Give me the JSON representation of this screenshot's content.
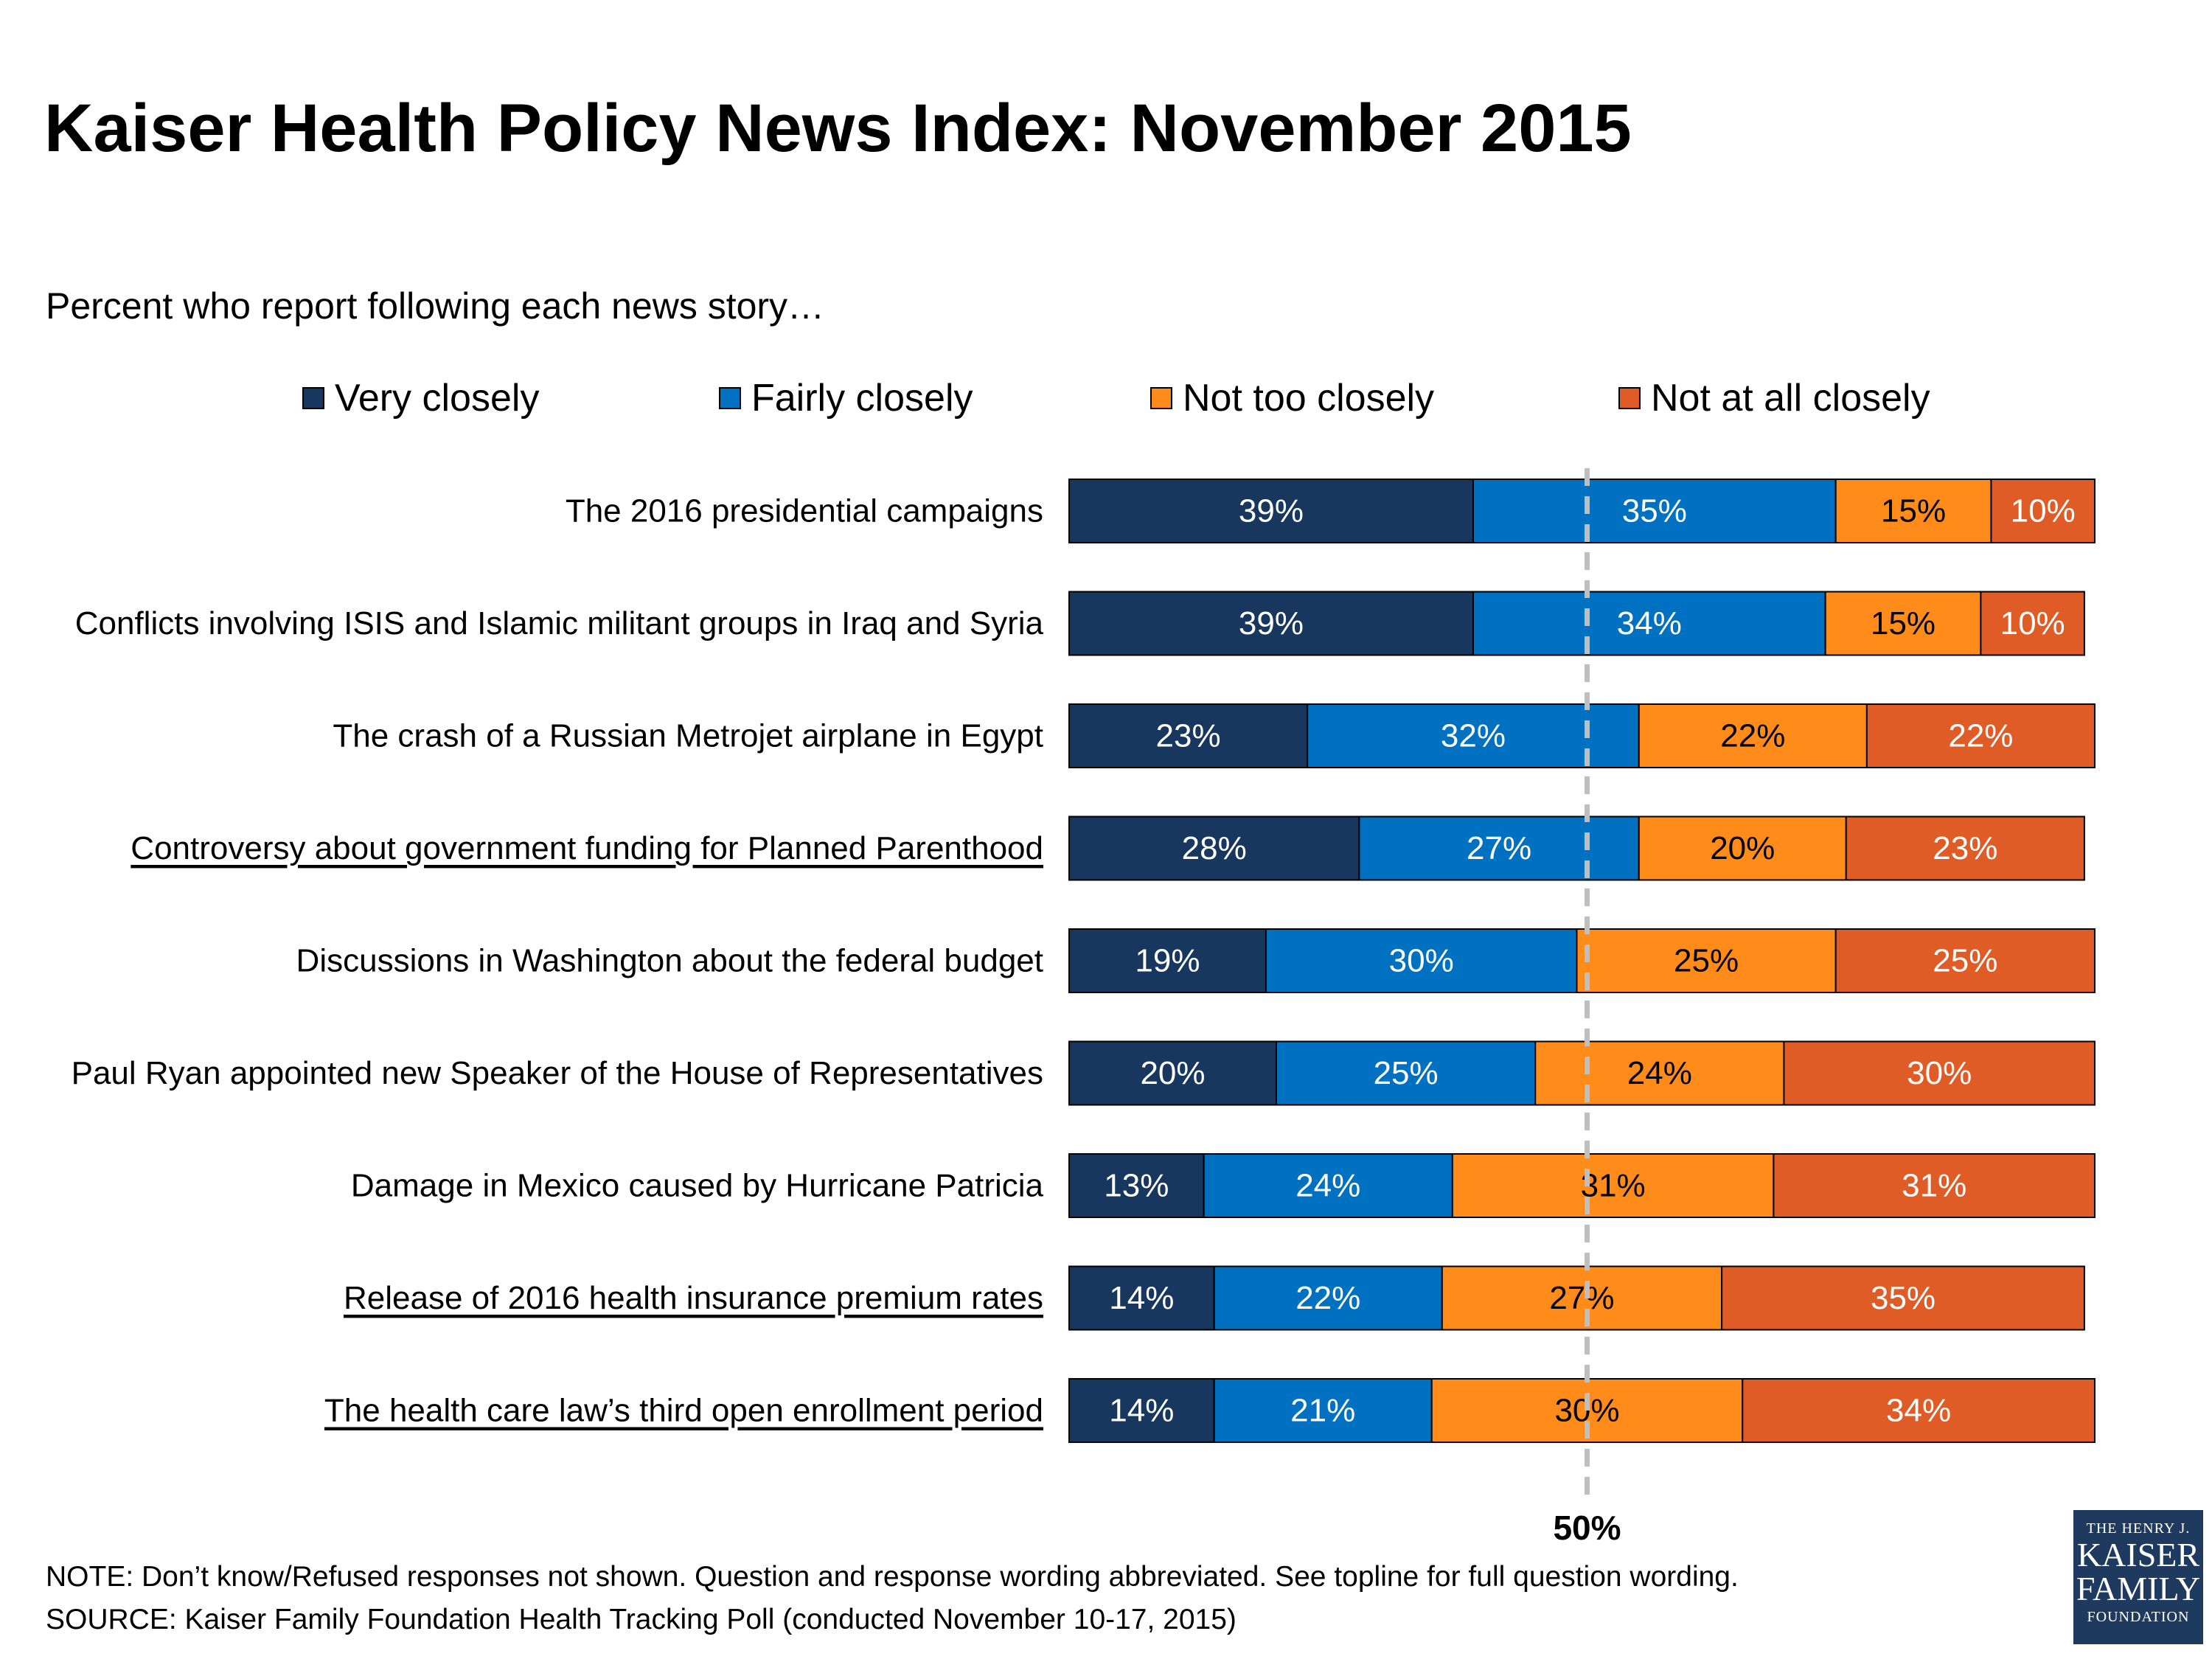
{
  "title": "Kaiser Health Policy News Index: November 2015",
  "subtitle": "Percent who report following each news story…",
  "footnotes": {
    "note": "NOTE: Don’t know/Refused responses not shown. Question and response wording abbreviated.  See topline for full question wording.",
    "source": "SOURCE: Kaiser Family Foundation Health Tracking Poll (conducted November 10-17, 2015)"
  },
  "logo": {
    "line1": "THE HENRY J.",
    "line2": "KAISER",
    "line3": "FAMILY",
    "line4": "FOUNDATION"
  },
  "chart_data": {
    "type": "bar",
    "orientation": "horizontal",
    "stacked": true,
    "unit": "%",
    "xlim": [
      0,
      100
    ],
    "grid": false,
    "legend_position": "top",
    "reference_line": {
      "value": 50,
      "label": "50%",
      "style": "dashed",
      "color": "#BFBFBF"
    },
    "categories": [
      "The 2016 presidential campaigns",
      "Conflicts involving ISIS and Islamic militant groups in Iraq and Syria",
      "The crash of a Russian Metrojet airplane in Egypt",
      "Controversy about government funding for Planned Parenthood",
      "Discussions in Washington about the federal budget",
      "Paul Ryan appointed new Speaker of the House of Representatives",
      "Damage in Mexico caused by Hurricane Patricia",
      "Release of 2016 health insurance premium rates",
      "The health care law’s third open enrollment period"
    ],
    "underlined_categories": [
      "Controversy about government funding for Planned Parenthood",
      "Release of 2016 health insurance premium rates",
      "The health care law’s third open enrollment period"
    ],
    "series": [
      {
        "name": "Very closely",
        "color": "#17375E",
        "label_color": "#FFFFFF",
        "values": [
          39,
          39,
          23,
          28,
          19,
          20,
          13,
          14,
          14
        ]
      },
      {
        "name": "Fairly closely",
        "color": "#0070C0",
        "label_color": "#FFFFFF",
        "values": [
          35,
          34,
          32,
          27,
          30,
          25,
          24,
          22,
          21
        ]
      },
      {
        "name": "Not too closely",
        "color": "#FF8C1A",
        "label_color": "#000000",
        "values": [
          15,
          15,
          22,
          20,
          25,
          24,
          31,
          27,
          30
        ]
      },
      {
        "name": "Not at all closely",
        "color": "#E05C26",
        "label_color": "#FFFFFF",
        "values": [
          10,
          10,
          22,
          23,
          25,
          30,
          31,
          35,
          34
        ]
      }
    ]
  }
}
